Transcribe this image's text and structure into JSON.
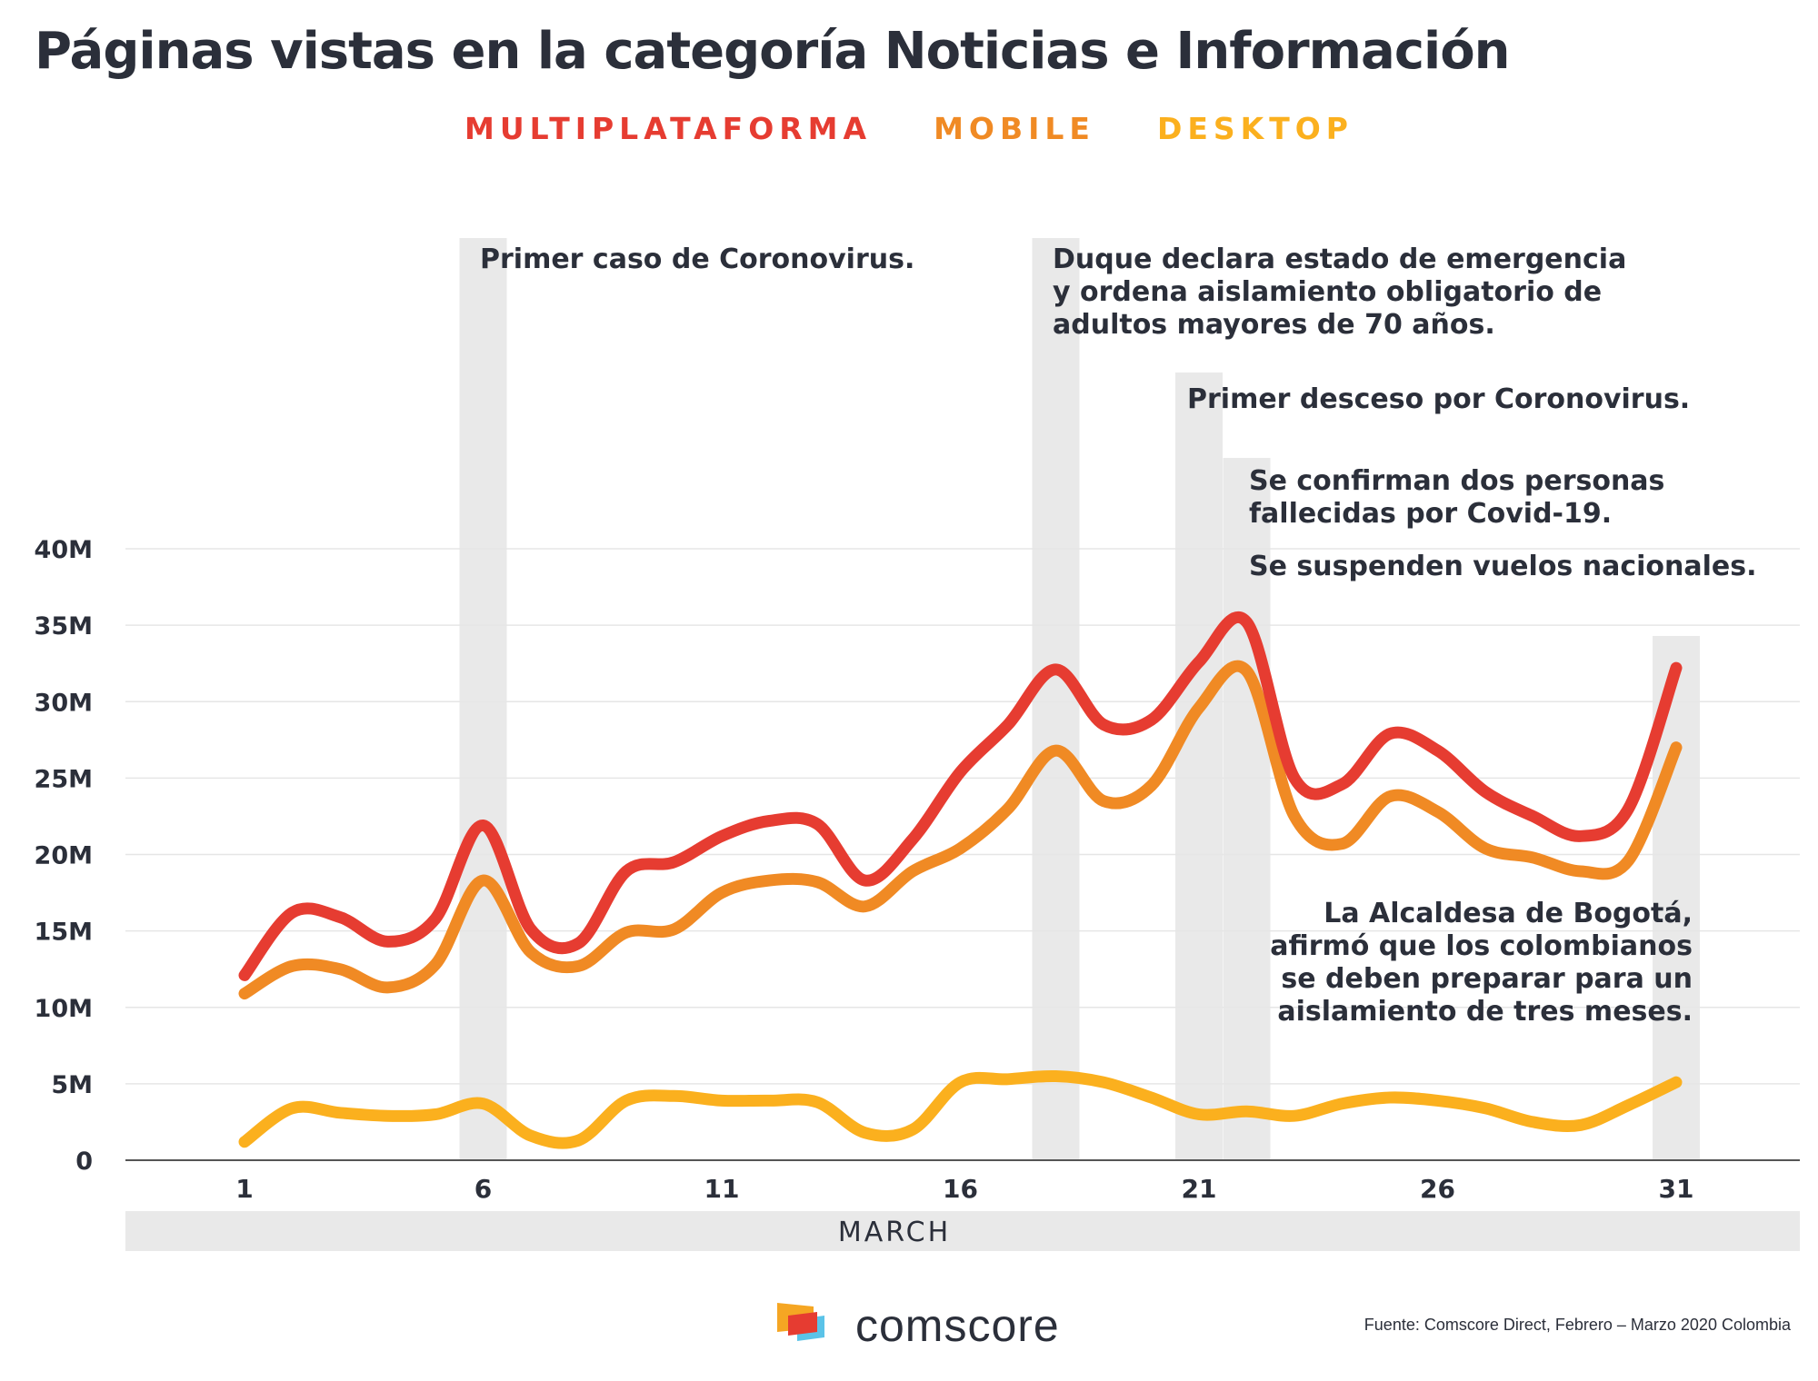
{
  "title": "Páginas vistas en la categoría Noticias e Información",
  "legend": [
    "MULTIPLATAFORMA",
    "MOBILE",
    "DESKTOP"
  ],
  "colors": {
    "multiplataforma": "#e63c31",
    "mobile": "#f08a24",
    "desktop": "#fbb01e",
    "band": "#e9e9e9",
    "text": "#2b2f3a",
    "grid": "#e6e6e6"
  },
  "annotations": {
    "first_case": [
      "Primer caso de Coronovirus."
    ],
    "emergency": [
      "Duque declara estado de emergencia",
      "y ordena aislamiento obligatorio de",
      "adultos mayores de 70 años."
    ],
    "first_death": [
      "Primer desceso por  Coronovirus."
    ],
    "two_deaths": [
      "Se confirman dos personas",
      "fallecidas por Covid-19."
    ],
    "flights": [
      "Se suspenden vuelos nacionales."
    ],
    "bogota": [
      "La Alcaldesa de Bogotá,",
      "afirmó que los colombianos",
      "se deben preparar para un",
      "aislamiento de tres meses."
    ]
  },
  "brand": "comscore",
  "source": "Fuente: Comscore Direct, Febrero – Marzo 2020 Colombia",
  "chart_data": {
    "type": "line",
    "xlabel": "MARCH",
    "ylabel": "",
    "x": [
      1,
      2,
      3,
      4,
      5,
      6,
      7,
      8,
      9,
      10,
      11,
      12,
      13,
      14,
      15,
      16,
      17,
      18,
      19,
      20,
      21,
      22,
      23,
      24,
      25,
      26,
      27,
      28,
      29,
      30,
      31
    ],
    "x_ticks": [
      1,
      6,
      11,
      16,
      21,
      26,
      31
    ],
    "y_ticks": [
      0,
      5,
      10,
      15,
      20,
      25,
      30,
      35,
      40
    ],
    "y_tick_labels": [
      "0",
      "5M",
      "10M",
      "15M",
      "20M",
      "25M",
      "30M",
      "35M",
      "40M"
    ],
    "ylim": [
      0,
      40
    ],
    "xlim": [
      1,
      31
    ],
    "grid": true,
    "legend_position": "top",
    "highlight_bands": [
      6,
      18,
      21,
      22,
      31
    ],
    "series": [
      {
        "name": "MULTIPLATAFORMA",
        "values": [
          12.1,
          16.2,
          15.9,
          14.3,
          15.8,
          21.9,
          15.1,
          14.2,
          18.9,
          19.5,
          21.2,
          22.2,
          22.0,
          18.3,
          21.0,
          25.4,
          28.5,
          32.1,
          28.5,
          28.8,
          32.6,
          35.2,
          25.0,
          24.6,
          27.9,
          26.8,
          24.1,
          22.5,
          21.2,
          23.0,
          32.2
        ]
      },
      {
        "name": "MOBILE",
        "values": [
          10.9,
          12.7,
          12.5,
          11.3,
          12.8,
          18.3,
          13.6,
          12.7,
          14.9,
          15.1,
          17.5,
          18.3,
          18.2,
          16.6,
          18.9,
          20.4,
          23.0,
          26.8,
          23.5,
          24.5,
          29.6,
          32.0,
          22.5,
          20.7,
          23.8,
          22.8,
          20.4,
          19.8,
          18.9,
          19.6,
          27.0
        ]
      },
      {
        "name": "DESKTOP",
        "values": [
          1.2,
          3.4,
          3.1,
          2.9,
          3.0,
          3.7,
          1.6,
          1.3,
          3.9,
          4.2,
          3.9,
          3.9,
          3.8,
          1.8,
          2.0,
          5.1,
          5.3,
          5.5,
          5.1,
          4.1,
          3.0,
          3.2,
          2.9,
          3.7,
          4.1,
          3.9,
          3.4,
          2.5,
          2.3,
          3.6,
          5.1
        ]
      }
    ]
  }
}
